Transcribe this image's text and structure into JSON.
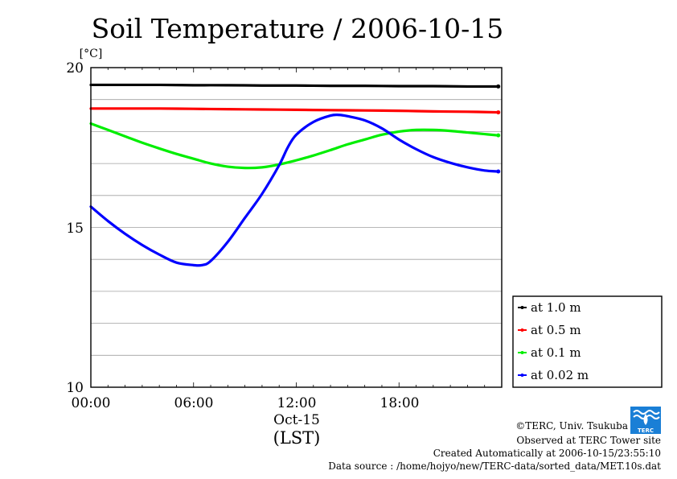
{
  "chart_data": {
    "type": "line",
    "title": "Soil Temperature / 2006-10-15",
    "unit_label": "[°C]",
    "xlabel_date": "Oct-15",
    "xlabel": "(LST)",
    "x_ticks": [
      "00:00",
      "06:00",
      "12:00",
      "18:00"
    ],
    "y_ticks": [
      "20",
      "15",
      "10"
    ],
    "xlim": [
      0,
      24
    ],
    "ylim": [
      10,
      20
    ],
    "grid": true,
    "legend_position": "right",
    "series": [
      {
        "name": "at 1.0 m",
        "color": "#000000",
        "x": [
          0,
          2,
          4,
          6,
          8,
          10,
          12,
          14,
          16,
          18,
          20,
          22,
          23.8
        ],
        "y": [
          19.46,
          19.46,
          19.46,
          19.45,
          19.45,
          19.44,
          19.44,
          19.43,
          19.43,
          19.42,
          19.42,
          19.41,
          19.41
        ]
      },
      {
        "name": "at 0.5 m",
        "color": "#ff0000",
        "x": [
          0,
          2,
          4,
          6,
          8,
          10,
          12,
          14,
          16,
          18,
          20,
          22,
          23.8
        ],
        "y": [
          18.72,
          18.72,
          18.72,
          18.71,
          18.7,
          18.69,
          18.68,
          18.67,
          18.66,
          18.65,
          18.63,
          18.62,
          18.6
        ]
      },
      {
        "name": "at 0.1 m",
        "color": "#00ee00",
        "x": [
          0,
          1,
          2,
          3,
          4,
          5,
          6,
          7,
          8,
          9,
          10,
          11,
          12,
          13,
          14,
          15,
          16,
          17,
          18,
          19,
          20,
          21,
          22,
          23,
          23.8
        ],
        "y": [
          18.25,
          18.05,
          17.85,
          17.65,
          17.47,
          17.3,
          17.15,
          17.0,
          16.9,
          16.86,
          16.88,
          16.97,
          17.1,
          17.25,
          17.42,
          17.6,
          17.75,
          17.9,
          18.0,
          18.05,
          18.05,
          18.02,
          17.97,
          17.92,
          17.88
        ]
      },
      {
        "name": "at 0.02 m",
        "color": "#0000ff",
        "x": [
          0,
          1,
          2,
          3,
          4,
          5,
          6,
          6.5,
          7,
          8,
          9,
          10,
          11,
          11.5,
          12,
          13,
          14,
          14.5,
          15,
          16,
          17,
          18,
          19,
          20,
          21,
          22,
          23,
          23.8
        ],
        "y": [
          15.65,
          15.2,
          14.8,
          14.45,
          14.15,
          13.9,
          13.82,
          13.82,
          13.95,
          14.55,
          15.3,
          16.05,
          16.95,
          17.5,
          17.9,
          18.3,
          18.5,
          18.52,
          18.48,
          18.35,
          18.1,
          17.75,
          17.45,
          17.2,
          17.02,
          16.88,
          16.78,
          16.75
        ]
      }
    ]
  },
  "footer": {
    "copyright": "©TERC, Univ. Tsukuba",
    "observed": "Observed at TERC Tower site",
    "created": "Created Automatically at 2006-10-15/23:55:10",
    "source": "Data source : /home/hojyo/new/TERC-data/sorted_data/MET.10s.dat"
  },
  "logo": {
    "text": "TERC",
    "color": "#1a7fd6"
  }
}
